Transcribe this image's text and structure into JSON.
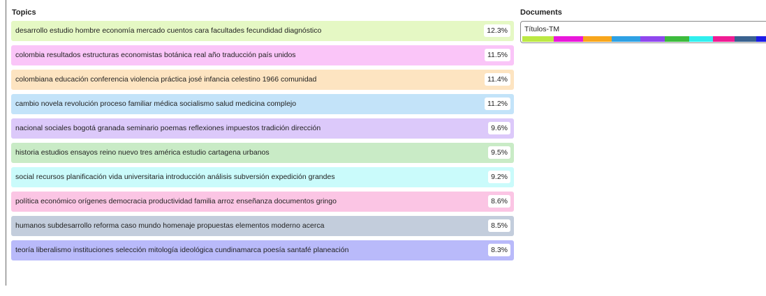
{
  "topics_panel": {
    "title": "Topics",
    "topics": [
      {
        "words": "desarrollo estudio hombre economía mercado cuentos cara facultades fecundidad diagnóstico",
        "share": 12.3,
        "share_label": "12.3%",
        "color": "#bce944",
        "background": "#e5f8c4"
      },
      {
        "words": "colombia resultados estructuras economistas botánica real año traducción país unidos",
        "share": 11.5,
        "share_label": "11.5%",
        "color": "#e918da",
        "background": "#fac5f8"
      },
      {
        "words": "colombiana educación conferencia violencia práctica josé infancia celestino 1966 comunidad",
        "share": 11.4,
        "share_label": "11.4%",
        "color": "#f8a61c",
        "background": "#fde4c1"
      },
      {
        "words": "cambio novela revolución proceso familiar médica socialismo salud medicina complejo",
        "share": 11.2,
        "share_label": "11.2%",
        "color": "#2ea1e4",
        "background": "#c3e3f9"
      },
      {
        "words": "nacional sociales bogotá granada seminario poemas reflexiones impuestos tradición dirección",
        "share": 9.6,
        "share_label": "9.6%",
        "color": "#8f47ee",
        "background": "#dcc9fa"
      },
      {
        "words": "historia estudios ensayos reino nuevo tres américa estudio cartagena urbanos",
        "share": 9.5,
        "share_label": "9.5%",
        "color": "#3dbb3d",
        "background": "#c9ebc6"
      },
      {
        "words": "social recursos planificación vida universitaria introducción análisis subversión expedición grandes",
        "share": 9.2,
        "share_label": "9.2%",
        "color": "#30efee",
        "background": "#cafbfb"
      },
      {
        "words": "política económico orígenes democracia productividad familia arroz enseñanza documentos gringo",
        "share": 8.6,
        "share_label": "8.6%",
        "color": "#ef1c93",
        "background": "#fbc5e4"
      },
      {
        "words": "humanos subdesarrollo reforma caso mundo homenaje propuestas elementos moderno acerca",
        "share": 8.5,
        "share_label": "8.5%",
        "color": "#3a628f",
        "background": "#c3cddc"
      },
      {
        "words": "teoría liberalismo instituciones selección mitología ideológica cundinamarca poesía santafé planeación",
        "share": 8.3,
        "share_label": "8.3%",
        "color": "#1c1ce8",
        "background": "#b9bafa"
      }
    ]
  },
  "documents_panel": {
    "title": "Documents",
    "documents": [
      {
        "name": "Títulos-TM"
      }
    ]
  }
}
